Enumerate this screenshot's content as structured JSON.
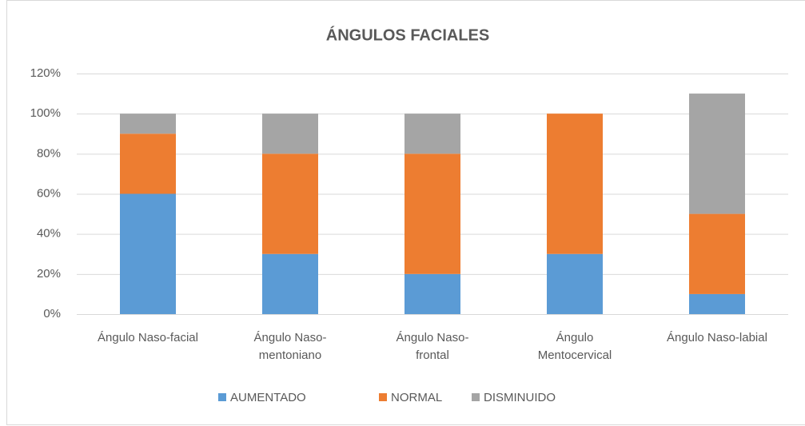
{
  "chart_data": {
    "type": "stacked_bar",
    "title": "ÁNGULOS FACIALES",
    "categories": [
      "Ángulo Naso-facial",
      "Ángulo Naso-\nmentoniano",
      "Ángulo Naso-\nfrontal",
      "Ángulo\nMentocervical",
      "Ángulo Naso-labial"
    ],
    "series": [
      {
        "name": "AUMENTADO",
        "color": "#5b9bd5",
        "values": [
          60,
          30,
          20,
          30,
          10
        ]
      },
      {
        "name": "NORMAL",
        "color": "#ed7d31",
        "values": [
          30,
          50,
          60,
          70,
          40
        ]
      },
      {
        "name": "DISMINUIDO",
        "color": "#a5a5a5",
        "values": [
          10,
          20,
          20,
          0,
          60
        ]
      }
    ],
    "ylim": [
      0,
      120
    ],
    "yticks": [
      {
        "value": 0,
        "label": "0%"
      },
      {
        "value": 20,
        "label": "20%"
      },
      {
        "value": 40,
        "label": "40%"
      },
      {
        "value": 60,
        "label": "60%"
      },
      {
        "value": 80,
        "label": "80%"
      },
      {
        "value": 100,
        "label": "100%"
      },
      {
        "value": 120,
        "label": "120%"
      }
    ],
    "grid": true,
    "legend": "bottom"
  }
}
